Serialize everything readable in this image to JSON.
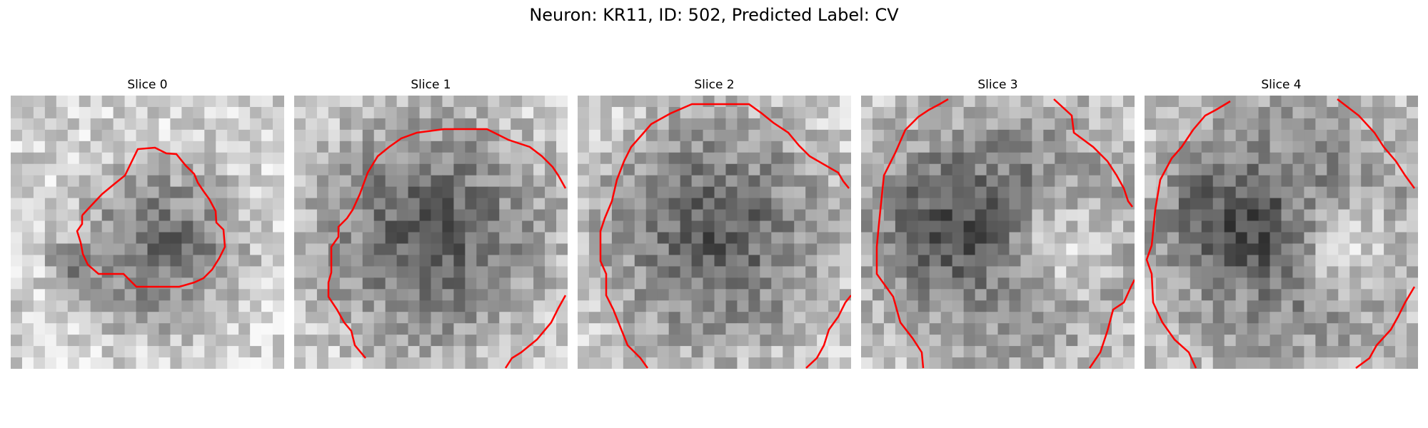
{
  "figure": {
    "title": "Neuron: KR11, ID: 502, Predicted Label: CV"
  },
  "colors": {
    "contour": "#ff0000",
    "colormap": "gray"
  },
  "panels": [
    {
      "label": "Slice 0",
      "seed": 11,
      "pattern": "dark-blob-center"
    },
    {
      "label": "Slice 1",
      "seed": 23,
      "pattern": "dark-large-blob"
    },
    {
      "label": "Slice 2",
      "seed": 37,
      "pattern": "dark-large-blob"
    },
    {
      "label": "Slice 3",
      "seed": 41,
      "pattern": "dark-left-bright-right"
    },
    {
      "label": "Slice 4",
      "seed": 53,
      "pattern": "dark-left-bright-right"
    }
  ]
}
